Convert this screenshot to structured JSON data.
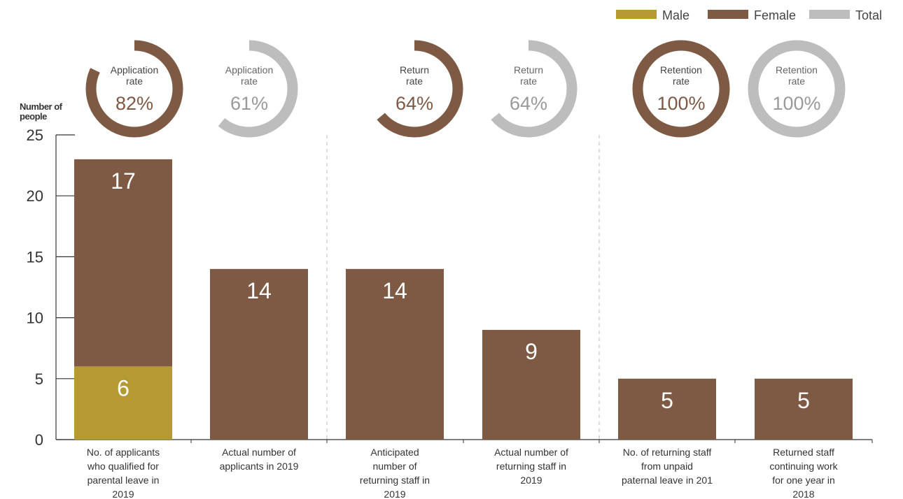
{
  "chart_data": {
    "type": "bar",
    "ylabel": "Number of people",
    "ylim": [
      0,
      25
    ],
    "yticks": [
      0,
      5,
      10,
      15,
      20,
      25
    ],
    "categories": [
      "No. of applicants who qualified for parental leave in 2019",
      "Actual number of applicants in 2019",
      "Anticipated number of returning staff in 2019",
      "Actual number of returning staff in 2019",
      "No. of returning staff from unpaid paternal leave in 201",
      "Returned staff continuing work for one year in 2018"
    ],
    "category_lines": [
      [
        "No. of applicants",
        "who qualified for",
        "parental leave in",
        "2019"
      ],
      [
        "Actual number of",
        "applicants in 2019"
      ],
      [
        "Anticipated",
        "number of",
        "returning staff in",
        "2019"
      ],
      [
        "Actual number of",
        "returning staff in",
        "2019"
      ],
      [
        "No. of returning staff",
        "from unpaid",
        "paternal leave in 201"
      ],
      [
        "Returned staff",
        "continuing work",
        "for one year in",
        "2018"
      ]
    ],
    "series": [
      {
        "name": "Male",
        "color": "#b59a33",
        "values": [
          6,
          0,
          0,
          0,
          0,
          0
        ]
      },
      {
        "name": "Female",
        "color": "#7e5a45",
        "values": [
          17,
          14,
          14,
          9,
          5,
          5
        ]
      }
    ],
    "legend": [
      {
        "name": "Male",
        "color": "#b59a33"
      },
      {
        "name": "Female",
        "color": "#7e5a45"
      },
      {
        "name": "Total",
        "color": "#bdbdbd"
      }
    ],
    "legend_position": "top-right",
    "grid": false,
    "rates": [
      {
        "title": [
          "Application",
          "rate"
        ],
        "value": "82%",
        "percent": 82,
        "series": "Female",
        "color": "#7e5a45"
      },
      {
        "title": [
          "Application",
          "rate"
        ],
        "value": "61%",
        "percent": 61,
        "series": "Total",
        "color": "#bdbdbd"
      },
      {
        "title": [
          "Return",
          "rate"
        ],
        "value": "64%",
        "percent": 64,
        "series": "Female",
        "color": "#7e5a45"
      },
      {
        "title": [
          "Return",
          "rate"
        ],
        "value": "64%",
        "percent": 64,
        "series": "Total",
        "color": "#bdbdbd"
      },
      {
        "title": [
          "Retention",
          "rate"
        ],
        "value": "100%",
        "percent": 100,
        "series": "Female",
        "color": "#7e5a45"
      },
      {
        "title": [
          "Retention",
          "rate"
        ],
        "value": "100%",
        "percent": 100,
        "series": "Total",
        "color": "#bdbdbd"
      }
    ]
  }
}
